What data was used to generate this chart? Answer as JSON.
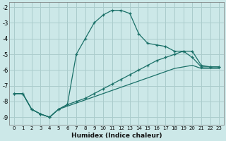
{
  "xlabel": "Humidex (Indice chaleur)",
  "background_color": "#cce8e8",
  "grid_color": "#aacccc",
  "line_color": "#1a7068",
  "xlim": [
    -0.5,
    23.5
  ],
  "ylim": [
    -9.5,
    -1.7
  ],
  "yticks": [
    -9,
    -8,
    -7,
    -6,
    -5,
    -4,
    -3,
    -2
  ],
  "xticks": [
    0,
    1,
    2,
    3,
    4,
    5,
    6,
    7,
    8,
    9,
    10,
    11,
    12,
    13,
    14,
    15,
    16,
    17,
    18,
    19,
    20,
    21,
    22,
    23
  ],
  "curve1_x": [
    0,
    1,
    2,
    3,
    4,
    5,
    6,
    7,
    8,
    9,
    10,
    11,
    12,
    13,
    14,
    15,
    16,
    17,
    18,
    19,
    20,
    21,
    22,
    23
  ],
  "curve1_y": [
    -7.5,
    -7.5,
    -8.5,
    -8.8,
    -9.0,
    -8.5,
    -8.2,
    -5.0,
    -4.0,
    -3.0,
    -2.5,
    -2.2,
    -2.2,
    -2.4,
    -3.7,
    -4.3,
    -4.4,
    -4.5,
    -4.8,
    -4.8,
    -4.8,
    -5.7,
    -5.8,
    -5.8
  ],
  "curve2_x": [
    0,
    1,
    2,
    3,
    4,
    5,
    6,
    7,
    8,
    9,
    10,
    11,
    12,
    13,
    14,
    15,
    16,
    17,
    18,
    19,
    20,
    21,
    22,
    23
  ],
  "curve2_y": [
    -7.5,
    -7.5,
    -8.5,
    -8.8,
    -9.0,
    -8.5,
    -8.2,
    -8.0,
    -7.8,
    -7.5,
    -7.2,
    -6.9,
    -6.6,
    -6.3,
    -6.0,
    -5.7,
    -5.4,
    -5.2,
    -5.0,
    -4.8,
    -5.2,
    -5.8,
    -5.8,
    -5.8
  ],
  "curve3_x": [
    0,
    1,
    2,
    3,
    4,
    5,
    6,
    7,
    8,
    9,
    10,
    11,
    12,
    13,
    14,
    15,
    16,
    17,
    18,
    19,
    20,
    21,
    22,
    23
  ],
  "curve3_y": [
    -7.5,
    -7.5,
    -8.5,
    -8.8,
    -9.0,
    -8.5,
    -8.3,
    -8.1,
    -7.9,
    -7.7,
    -7.5,
    -7.3,
    -7.1,
    -6.9,
    -6.7,
    -6.5,
    -6.3,
    -6.1,
    -5.9,
    -5.8,
    -5.7,
    -5.9,
    -5.9,
    -5.9
  ]
}
